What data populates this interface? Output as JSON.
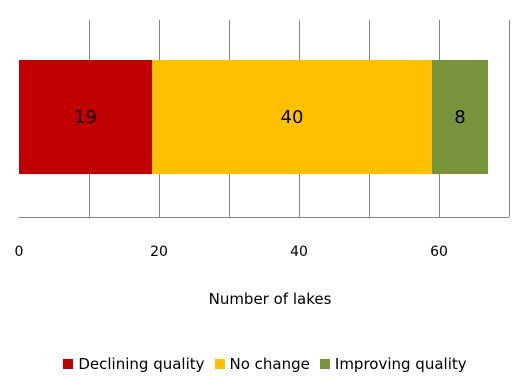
{
  "chart_data": {
    "type": "bar",
    "orientation": "horizontal",
    "stacked": true,
    "categories": [
      ""
    ],
    "series": [
      {
        "name": "Declining quality",
        "values": [
          19
        ],
        "color": "#c00000"
      },
      {
        "name": "No change",
        "values": [
          40
        ],
        "color": "#ffc000"
      },
      {
        "name": "Improving quality",
        "values": [
          8
        ],
        "color": "#77933c"
      }
    ],
    "title": "",
    "xlabel": "Number of lakes",
    "ylabel": "",
    "xlim": [
      0,
      70
    ],
    "xticks": [
      0,
      20,
      40,
      60
    ],
    "xtick_labels": [
      "0",
      "20",
      "40",
      "60"
    ],
    "grid": "vertical",
    "legend_position": "bottom"
  }
}
